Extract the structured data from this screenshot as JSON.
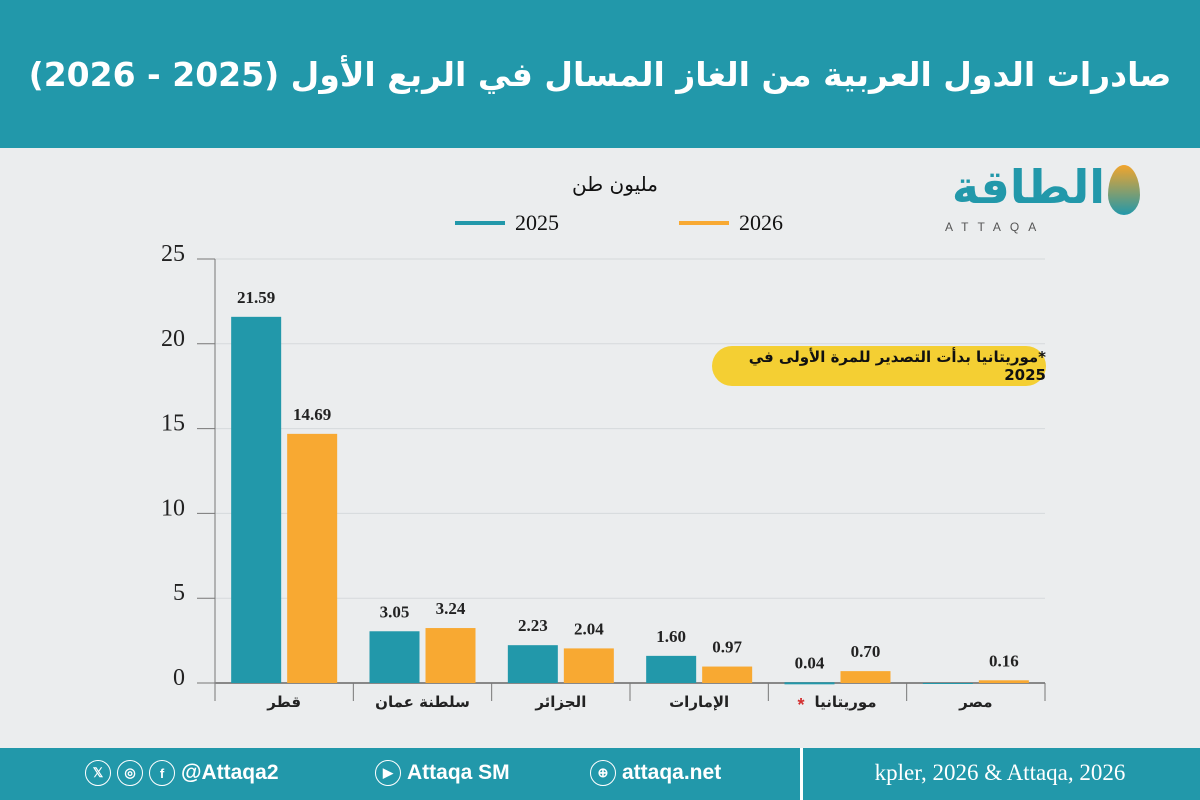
{
  "header": {
    "title": "صادرات الدول العربية من الغاز المسال في الربع الأول (2025 - 2026)"
  },
  "logo": {
    "arabic": "الطاقة",
    "latin": "ATTAQA"
  },
  "note": "*موريتانيا بدأت التصدير للمرة الأولى في 2025",
  "chart_data": {
    "type": "bar",
    "ylabel": "مليون طن",
    "categories": [
      "قطر",
      "سلطنة عمان",
      "الجزائر",
      "الإمارات",
      "موريتانيا*",
      "مصر"
    ],
    "series": [
      {
        "name": "2025",
        "color": "#2298aa",
        "values": [
          21.59,
          3.05,
          2.23,
          1.6,
          0.04,
          0
        ]
      },
      {
        "name": "2026",
        "color": "#f8a932",
        "values": [
          14.69,
          3.24,
          2.04,
          0.97,
          0.7,
          0.16
        ]
      }
    ],
    "value_labels": [
      [
        "21.59",
        "3.05",
        "2.23",
        "1.60",
        "0.04",
        ""
      ],
      [
        "14.69",
        "3.24",
        "2.04",
        "0.97",
        "0.70",
        "0.16"
      ]
    ],
    "ylim": [
      0,
      25
    ],
    "yticks": [
      "0",
      "5",
      "10",
      "15",
      "20",
      "25"
    ],
    "grid": true,
    "legend": "top-center"
  },
  "footer": {
    "handle": "@Attaqa2",
    "youtube": "Attaqa SM",
    "website": "attaqa.net",
    "source": "kpler, 2026 & Attaqa, 2026",
    "icons": [
      "x-icon",
      "instagram-icon",
      "facebook-icon",
      "youtube-icon",
      "web-icon"
    ]
  }
}
